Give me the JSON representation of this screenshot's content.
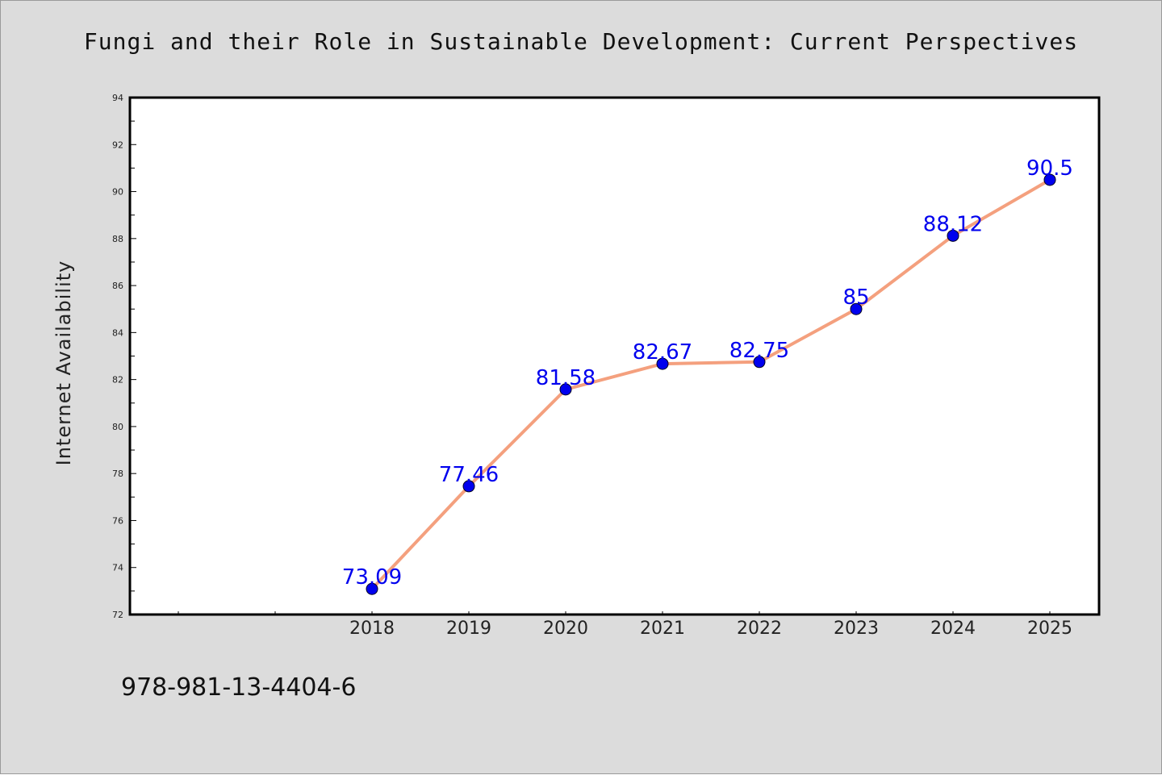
{
  "chart_data": {
    "type": "line",
    "title": "Fungi and their Role in Sustainable Development: Current Perspectives",
    "xlabel": "",
    "ylabel": "Internet Availability",
    "categories": [
      "2018",
      "2019",
      "2020",
      "2021",
      "2022",
      "2023",
      "2024",
      "2025"
    ],
    "values": [
      73.09,
      77.46,
      81.58,
      82.67,
      82.75,
      85,
      88.12,
      90.5
    ],
    "data_labels": [
      "73.09",
      "77.46",
      "81.58",
      "82.67",
      "82.75",
      "85",
      "88.12",
      "90.5"
    ],
    "ylim": [
      72,
      94
    ],
    "y_ticks": [
      "72",
      "74",
      "76",
      "78",
      "80",
      "82",
      "84",
      "86",
      "88",
      "90",
      "92",
      "94"
    ],
    "grid": false,
    "legend": "none",
    "colors": {
      "line": "#f4a07e",
      "marker": "#0000ee",
      "data_label": "#0000ee",
      "background": "#dcdcdc",
      "plot_area": "#ffffff"
    }
  },
  "footer": {
    "isbn": "978-981-13-4404-6"
  }
}
